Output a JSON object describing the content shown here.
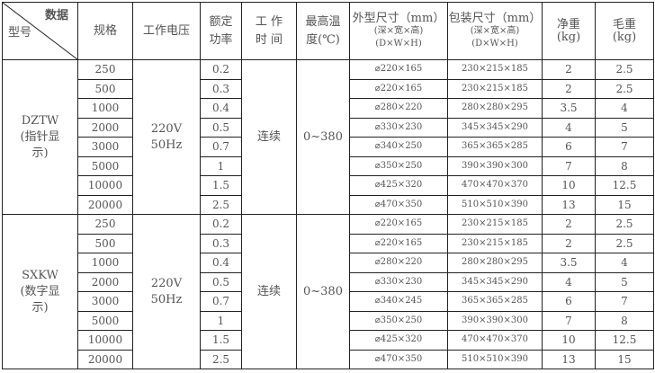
{
  "header": {
    "data": "数据",
    "model": "型号",
    "spec": "规格",
    "voltage": "工作电压",
    "power": "额定功率",
    "time": "工 作 时 间",
    "temp": "最高温度(℃)",
    "outer": [
      "外型尺寸（mm）",
      "(深×宽×高)",
      "(D×W×H)"
    ],
    "pack": [
      "包装尺寸（mm）",
      "(深×宽×高)",
      "(D×W×H)"
    ],
    "net": [
      "净重",
      "(kg)"
    ],
    "gross": [
      "毛重",
      "(kg)"
    ]
  },
  "groups": [
    {
      "model": [
        "DZTW",
        "(指针显",
        "示)"
      ],
      "voltage": [
        "220V",
        "50Hz"
      ],
      "time": "连续",
      "temp": "0~380",
      "rows": [
        [
          "250",
          "0.2",
          "⌀220×165",
          "230×215×185",
          "2",
          "2.5"
        ],
        [
          "500",
          "0.3",
          "⌀220×165",
          "230×215×185",
          "2",
          "2.5"
        ],
        [
          "1000",
          "0.4",
          "⌀280×220",
          "280×280×295",
          "3.5",
          "4"
        ],
        [
          "2000",
          "0.5",
          "⌀330×230",
          "345×345×290",
          "4",
          "5"
        ],
        [
          "3000",
          "0.7",
          "⌀340×250",
          "365×365×285",
          "6",
          "7"
        ],
        [
          "5000",
          "1",
          "⌀350×250",
          "390×390×300",
          "7",
          "8"
        ],
        [
          "10000",
          "1.5",
          "⌀425×320",
          "470×470×370",
          "10",
          "12.5"
        ],
        [
          "20000",
          "2.5",
          "⌀470×350",
          "510×510×390",
          "13",
          "15"
        ]
      ]
    },
    {
      "model": [
        "SXKW",
        "(数字显",
        "示)"
      ],
      "voltage": [
        "220V",
        "50Hz"
      ],
      "time": "连续",
      "temp": "0~380",
      "rows": [
        [
          "250",
          "0.2",
          "⌀220×165",
          "230×215×185",
          "2",
          "2.5"
        ],
        [
          "500",
          "0.3",
          "⌀220×165",
          "230×215×185",
          "2",
          "2.5"
        ],
        [
          "1000",
          "0.4",
          "⌀280×220",
          "280×280×295",
          "3.5",
          "4"
        ],
        [
          "2000",
          "0.5",
          "⌀330×230",
          "345×345×290",
          "4",
          "5"
        ],
        [
          "3000",
          "0.7",
          "⌀340×245",
          "365×365×285",
          "6",
          "7"
        ],
        [
          "5000",
          "1",
          "⌀350×250",
          "390×390×300",
          "7",
          "8"
        ],
        [
          "10000",
          "1.5",
          "⌀425×320",
          "470×470×370",
          "10",
          "12.5"
        ],
        [
          "20000",
          "2.5",
          "⌀470×350",
          "510×510×390",
          "13",
          "15"
        ]
      ]
    }
  ]
}
